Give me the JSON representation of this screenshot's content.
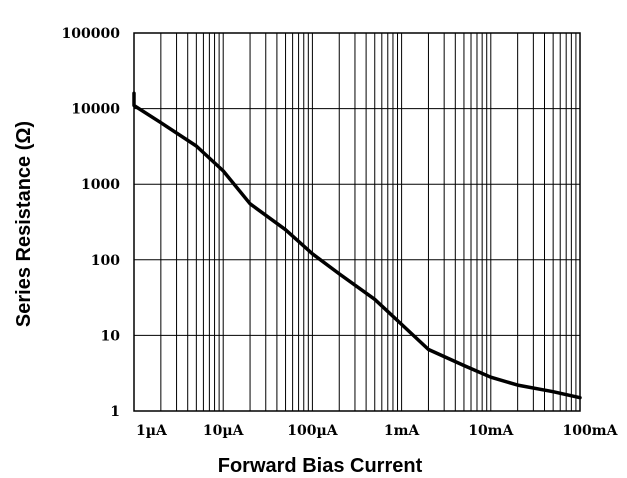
{
  "chart_data": {
    "type": "line",
    "xlabel": "Forward Bias Current",
    "ylabel": "Series Resistance (Ω)",
    "x_scale": "log",
    "y_scale": "log",
    "xlim": [
      1e-06,
      0.1
    ],
    "ylim": [
      1,
      100000
    ],
    "grid": true,
    "x_ticks": [
      {
        "value": 1e-06,
        "label": "1µA"
      },
      {
        "value": 1e-05,
        "label": "10µA"
      },
      {
        "value": 0.0001,
        "label": "100µA"
      },
      {
        "value": 0.001,
        "label": "1mA"
      },
      {
        "value": 0.01,
        "label": "10mA"
      },
      {
        "value": 0.1,
        "label": "100mA"
      }
    ],
    "y_ticks": [
      {
        "value": 1,
        "label": "1"
      },
      {
        "value": 10,
        "label": "10"
      },
      {
        "value": 100,
        "label": "100"
      },
      {
        "value": 1000,
        "label": "1000"
      },
      {
        "value": 10000,
        "label": "10000"
      },
      {
        "value": 100000,
        "label": "100000"
      }
    ],
    "series": [
      {
        "x": [
          7e-07,
          1e-06,
          2e-06,
          5e-06,
          1e-05,
          2e-05,
          5e-05,
          0.0001,
          0.0002,
          0.0005,
          0.001,
          0.002,
          0.005,
          0.01,
          0.02,
          0.05,
          0.1
        ],
        "y": [
          16000,
          11000,
          6500,
          3200,
          1500,
          550,
          250,
          120,
          65,
          30,
          14,
          6.5,
          4,
          2.8,
          2.2,
          1.8,
          1.5
        ]
      }
    ]
  }
}
